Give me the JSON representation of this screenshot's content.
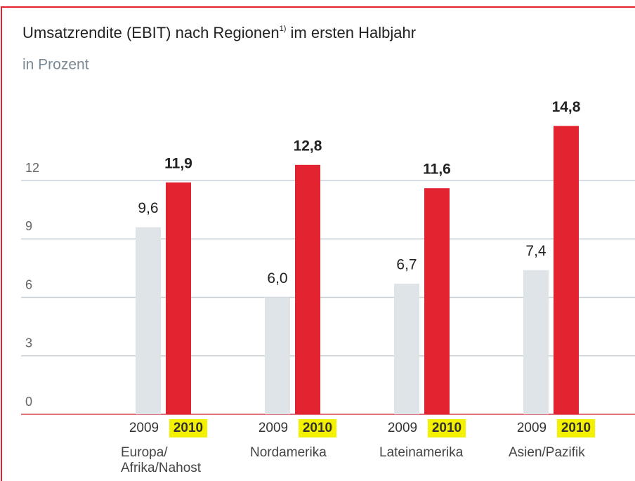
{
  "chart_data": {
    "type": "bar",
    "title": "Umsatzrendite (EBIT) nach Regionen",
    "title_note": "1)",
    "title_end": " im ersten Halbjahr",
    "subtitle": "in Prozent",
    "categories": [
      "Europa/\nAfrika/Nahost",
      "Nordamerika",
      "Lateinamerika",
      "Asien/Pazifik"
    ],
    "series": [
      {
        "name": "2009",
        "color": "#dfe4e8",
        "values": [
          9.6,
          6.0,
          6.7,
          7.4
        ],
        "value_labels": [
          "9,6",
          "6,0",
          "6,7",
          "7,4"
        ]
      },
      {
        "name": "2010",
        "color": "#e32330",
        "values": [
          11.9,
          12.8,
          11.6,
          14.8
        ],
        "value_labels": [
          "11,9",
          "12,8",
          "11,6",
          "14,8"
        ]
      }
    ],
    "ylim": [
      0,
      16
    ],
    "yticks": [
      0,
      3,
      6,
      9,
      12
    ],
    "grid": true
  }
}
